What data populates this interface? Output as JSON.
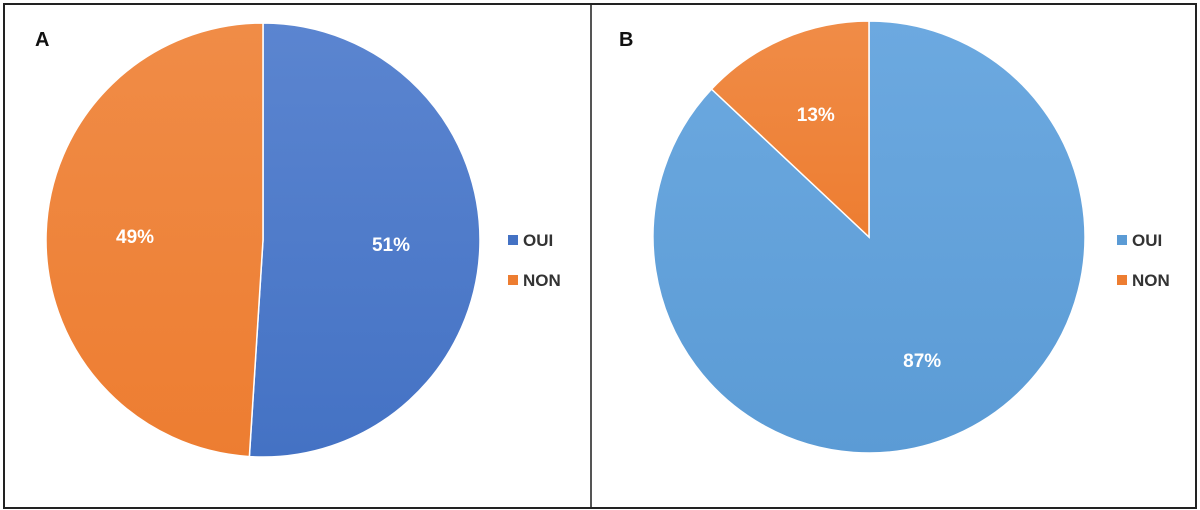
{
  "chart_data": [
    {
      "type": "pie",
      "panel": "A",
      "categories": [
        "OUI",
        "NON"
      ],
      "values": [
        51,
        49
      ],
      "labels": [
        "51%",
        "49%"
      ],
      "colors": [
        "#4472C4",
        "#ED7D31"
      ],
      "gradient_light": [
        "#5B85D0",
        "#F08C47"
      ],
      "legend": "right"
    },
    {
      "type": "pie",
      "panel": "B",
      "categories": [
        "OUI",
        "NON"
      ],
      "values": [
        87,
        13
      ],
      "labels": [
        "87%",
        "13%"
      ],
      "colors": [
        "#5B9BD5",
        "#ED7D31"
      ],
      "gradient_light": [
        "#6CA9E0",
        "#F08C47"
      ],
      "legend": "right"
    }
  ]
}
